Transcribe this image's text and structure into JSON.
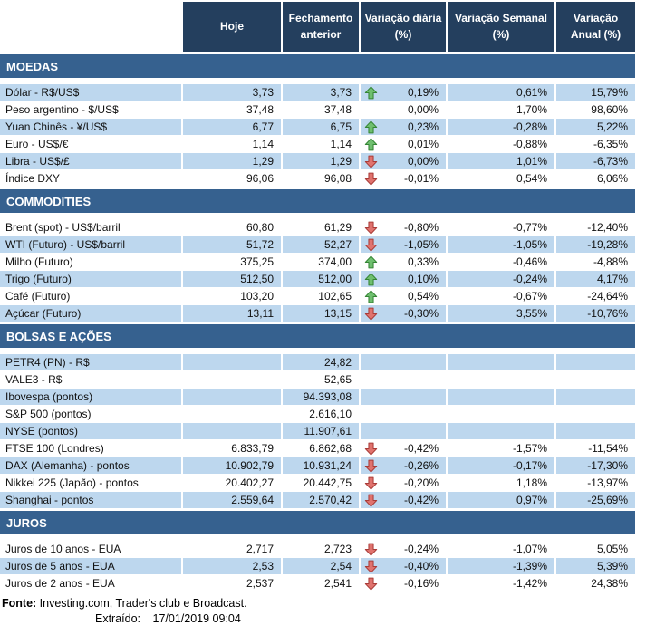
{
  "colors": {
    "header_navy": "#243F5E",
    "band_blue": "#36618F",
    "row_light_blue": "#BDD7EE",
    "arrow_up_fill": "#6FBF6F",
    "arrow_up_stroke": "#358535",
    "arrow_down_fill": "#E0736E",
    "arrow_down_stroke": "#A93C38"
  },
  "table": {
    "columns": [
      {
        "lines": [
          "Hoje"
        ]
      },
      {
        "lines": [
          "Fechamento",
          "anterior"
        ]
      },
      {
        "lines": [
          "Variação diária",
          "(%)"
        ]
      },
      {
        "lines": [
          "Variação Semanal",
          "(%)"
        ]
      },
      {
        "lines": [
          "Variação",
          "Anual (%)"
        ]
      }
    ],
    "sections": [
      {
        "title": "MOEDAS",
        "rows": [
          {
            "label": "Dólar - R$/US$",
            "hoje": "3,73",
            "fechamento": "3,73",
            "arrow": "up",
            "var_diaria": "0,19%",
            "var_semanal": "0,61%",
            "var_anual": "15,79%"
          },
          {
            "label": "Peso argentino - $/US$",
            "hoje": "37,48",
            "fechamento": "37,48",
            "arrow": "none",
            "var_diaria": "0,00%",
            "var_semanal": "1,70%",
            "var_anual": "98,60%"
          },
          {
            "label": "Yuan Chinês - ¥/US$",
            "hoje": "6,77",
            "fechamento": "6,75",
            "arrow": "up",
            "var_diaria": "0,23%",
            "var_semanal": "-0,28%",
            "var_anual": "5,22%"
          },
          {
            "label": "Euro - US$/€",
            "hoje": "1,14",
            "fechamento": "1,14",
            "arrow": "up",
            "var_diaria": "0,01%",
            "var_semanal": "-0,88%",
            "var_anual": "-6,35%"
          },
          {
            "label": "Libra - US$/£",
            "hoje": "1,29",
            "fechamento": "1,29",
            "arrow": "down",
            "var_diaria": "0,00%",
            "var_semanal": "1,01%",
            "var_anual": "-6,73%"
          },
          {
            "label": "Índice DXY",
            "hoje": "96,06",
            "fechamento": "96,08",
            "arrow": "down",
            "var_diaria": "-0,01%",
            "var_semanal": "0,54%",
            "var_anual": "6,06%"
          }
        ]
      },
      {
        "title": "COMMODITIES",
        "rows": [
          {
            "label": "Brent (spot) - US$/barril",
            "hoje": "60,80",
            "fechamento": "61,29",
            "arrow": "down",
            "var_diaria": "-0,80%",
            "var_semanal": "-0,77%",
            "var_anual": "-12,40%"
          },
          {
            "label": "WTI (Futuro) - US$/barril",
            "hoje": "51,72",
            "fechamento": "52,27",
            "arrow": "down",
            "var_diaria": "-1,05%",
            "var_semanal": "-1,05%",
            "var_anual": "-19,28%"
          },
          {
            "label": "Milho (Futuro)",
            "hoje": "375,25",
            "fechamento": "374,00",
            "arrow": "up",
            "var_diaria": "0,33%",
            "var_semanal": "-0,46%",
            "var_anual": "-4,88%"
          },
          {
            "label": "Trigo (Futuro)",
            "hoje": "512,50",
            "fechamento": "512,00",
            "arrow": "up",
            "var_diaria": "0,10%",
            "var_semanal": "-0,24%",
            "var_anual": "4,17%"
          },
          {
            "label": "Café (Futuro)",
            "hoje": "103,20",
            "fechamento": "102,65",
            "arrow": "up",
            "var_diaria": "0,54%",
            "var_semanal": "-0,67%",
            "var_anual": "-24,64%"
          },
          {
            "label": "Açúcar (Futuro)",
            "hoje": "13,11",
            "fechamento": "13,15",
            "arrow": "down",
            "var_diaria": "-0,30%",
            "var_semanal": "3,55%",
            "var_anual": "-10,76%"
          }
        ]
      },
      {
        "title": "BOLSAS E AÇÕES",
        "rows": [
          {
            "label": "PETR4 (PN) - R$",
            "hoje": "",
            "fechamento": "24,82",
            "arrow": "none",
            "var_diaria": "",
            "var_semanal": "",
            "var_anual": ""
          },
          {
            "label": "VALE3 - R$",
            "hoje": "",
            "fechamento": "52,65",
            "arrow": "none",
            "var_diaria": "",
            "var_semanal": "",
            "var_anual": ""
          },
          {
            "label": "Ibovespa (pontos)",
            "hoje": "",
            "fechamento": "94.393,08",
            "arrow": "none",
            "var_diaria": "",
            "var_semanal": "",
            "var_anual": ""
          },
          {
            "label": "S&P 500 (pontos)",
            "hoje": "",
            "fechamento": "2.616,10",
            "arrow": "none",
            "var_diaria": "",
            "var_semanal": "",
            "var_anual": ""
          },
          {
            "label": "NYSE (pontos)",
            "hoje": "",
            "fechamento": "11.907,61",
            "arrow": "none",
            "var_diaria": "",
            "var_semanal": "",
            "var_anual": ""
          },
          {
            "label": "FTSE 100 (Londres)",
            "hoje": "6.833,79",
            "fechamento": "6.862,68",
            "arrow": "down",
            "var_diaria": "-0,42%",
            "var_semanal": "-1,57%",
            "var_anual": "-11,54%"
          },
          {
            "label": "DAX (Alemanha) - pontos",
            "hoje": "10.902,79",
            "fechamento": "10.931,24",
            "arrow": "down",
            "var_diaria": "-0,26%",
            "var_semanal": "-0,17%",
            "var_anual": "-17,30%"
          },
          {
            "label": "Nikkei 225 (Japão) - pontos",
            "hoje": "20.402,27",
            "fechamento": "20.442,75",
            "arrow": "down",
            "var_diaria": "-0,20%",
            "var_semanal": "1,18%",
            "var_anual": "-13,97%"
          },
          {
            "label": "Shanghai - pontos",
            "hoje": "2.559,64",
            "fechamento": "2.570,42",
            "arrow": "down",
            "var_diaria": "-0,42%",
            "var_semanal": "0,97%",
            "var_anual": "-25,69%"
          }
        ]
      },
      {
        "title": "JUROS",
        "rows": [
          {
            "label": "Juros de 10 anos - EUA",
            "hoje": "2,717",
            "fechamento": "2,723",
            "arrow": "down",
            "var_diaria": "-0,24%",
            "var_semanal": "-1,07%",
            "var_anual": "5,05%"
          },
          {
            "label": "Juros de 5 anos - EUA",
            "hoje": "2,53",
            "fechamento": "2,54",
            "arrow": "down",
            "var_diaria": "-0,40%",
            "var_semanal": "-1,39%",
            "var_anual": "5,39%"
          },
          {
            "label": "Juros de 2 anos - EUA",
            "hoje": "2,537",
            "fechamento": "2,541",
            "arrow": "down",
            "var_diaria": "-0,16%",
            "var_semanal": "-1,42%",
            "var_anual": "24,38%"
          }
        ]
      }
    ]
  },
  "footer": {
    "fonte_label": "Fonte:",
    "fonte_text": "Investing.com, Trader's club e Broadcast.",
    "extraido_label": "Extraído:",
    "extraido_value": "17/01/2019 09:04"
  }
}
